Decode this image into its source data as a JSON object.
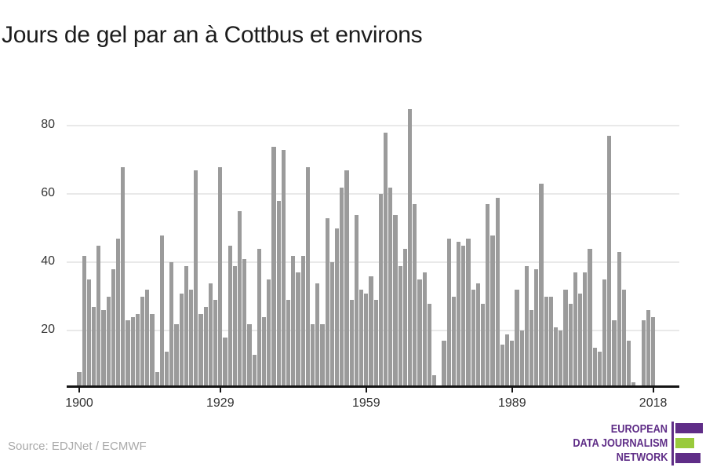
{
  "title": "Jours de gel par an à Cottbus et environs",
  "source": {
    "label": "Source: EDJNet / ECMWF"
  },
  "logo": {
    "lines": [
      "EUROPEAN",
      "DATA JOURNALISM",
      "NETWORK"
    ],
    "purple": "#5f2d87",
    "green": "#99ca3c"
  },
  "colors": {
    "bar": "#9b9b9b",
    "grid": "#e9e9e9",
    "axis": "#141414",
    "tick_label": "#333333",
    "title": "#1c1c1c",
    "source": "#a9a9a9"
  },
  "chart_data": {
    "type": "bar",
    "title": "Jours de gel par an à Cottbus et environs",
    "xlabel": "",
    "ylabel": "",
    "start_year": 1900,
    "end_year": 2018,
    "values": [
      8,
      42,
      35,
      27,
      45,
      26,
      30,
      38,
      47,
      68,
      23,
      24,
      25,
      30,
      32,
      25,
      8,
      48,
      14,
      40,
      22,
      31,
      39,
      32,
      67,
      25,
      27,
      34,
      29,
      68,
      18,
      45,
      39,
      55,
      41,
      22,
      13,
      44,
      24,
      35,
      74,
      58,
      73,
      29,
      42,
      37,
      42,
      68,
      22,
      34,
      22,
      53,
      40,
      50,
      62,
      67,
      29,
      54,
      32,
      31,
      36,
      29,
      60,
      78,
      62,
      54,
      39,
      44,
      85,
      57,
      35,
      37,
      28,
      7,
      0,
      17,
      47,
      30,
      46,
      45,
      47,
      32,
      34,
      28,
      57,
      48,
      59,
      16,
      19,
      17,
      32,
      20,
      39,
      26,
      38,
      63,
      30,
      30,
      21,
      20,
      32,
      28,
      37,
      31,
      37,
      44,
      15,
      14,
      35,
      77,
      23,
      43,
      32,
      17,
      5,
      0,
      23,
      26,
      24
    ],
    "missing_years": [
      1974,
      2015
    ],
    "xticks": [
      1900,
      1929,
      1959,
      1989,
      2018
    ],
    "yticks": [
      20,
      40,
      60,
      80
    ],
    "ylim": [
      4,
      86
    ],
    "grid": true,
    "legend": false
  }
}
